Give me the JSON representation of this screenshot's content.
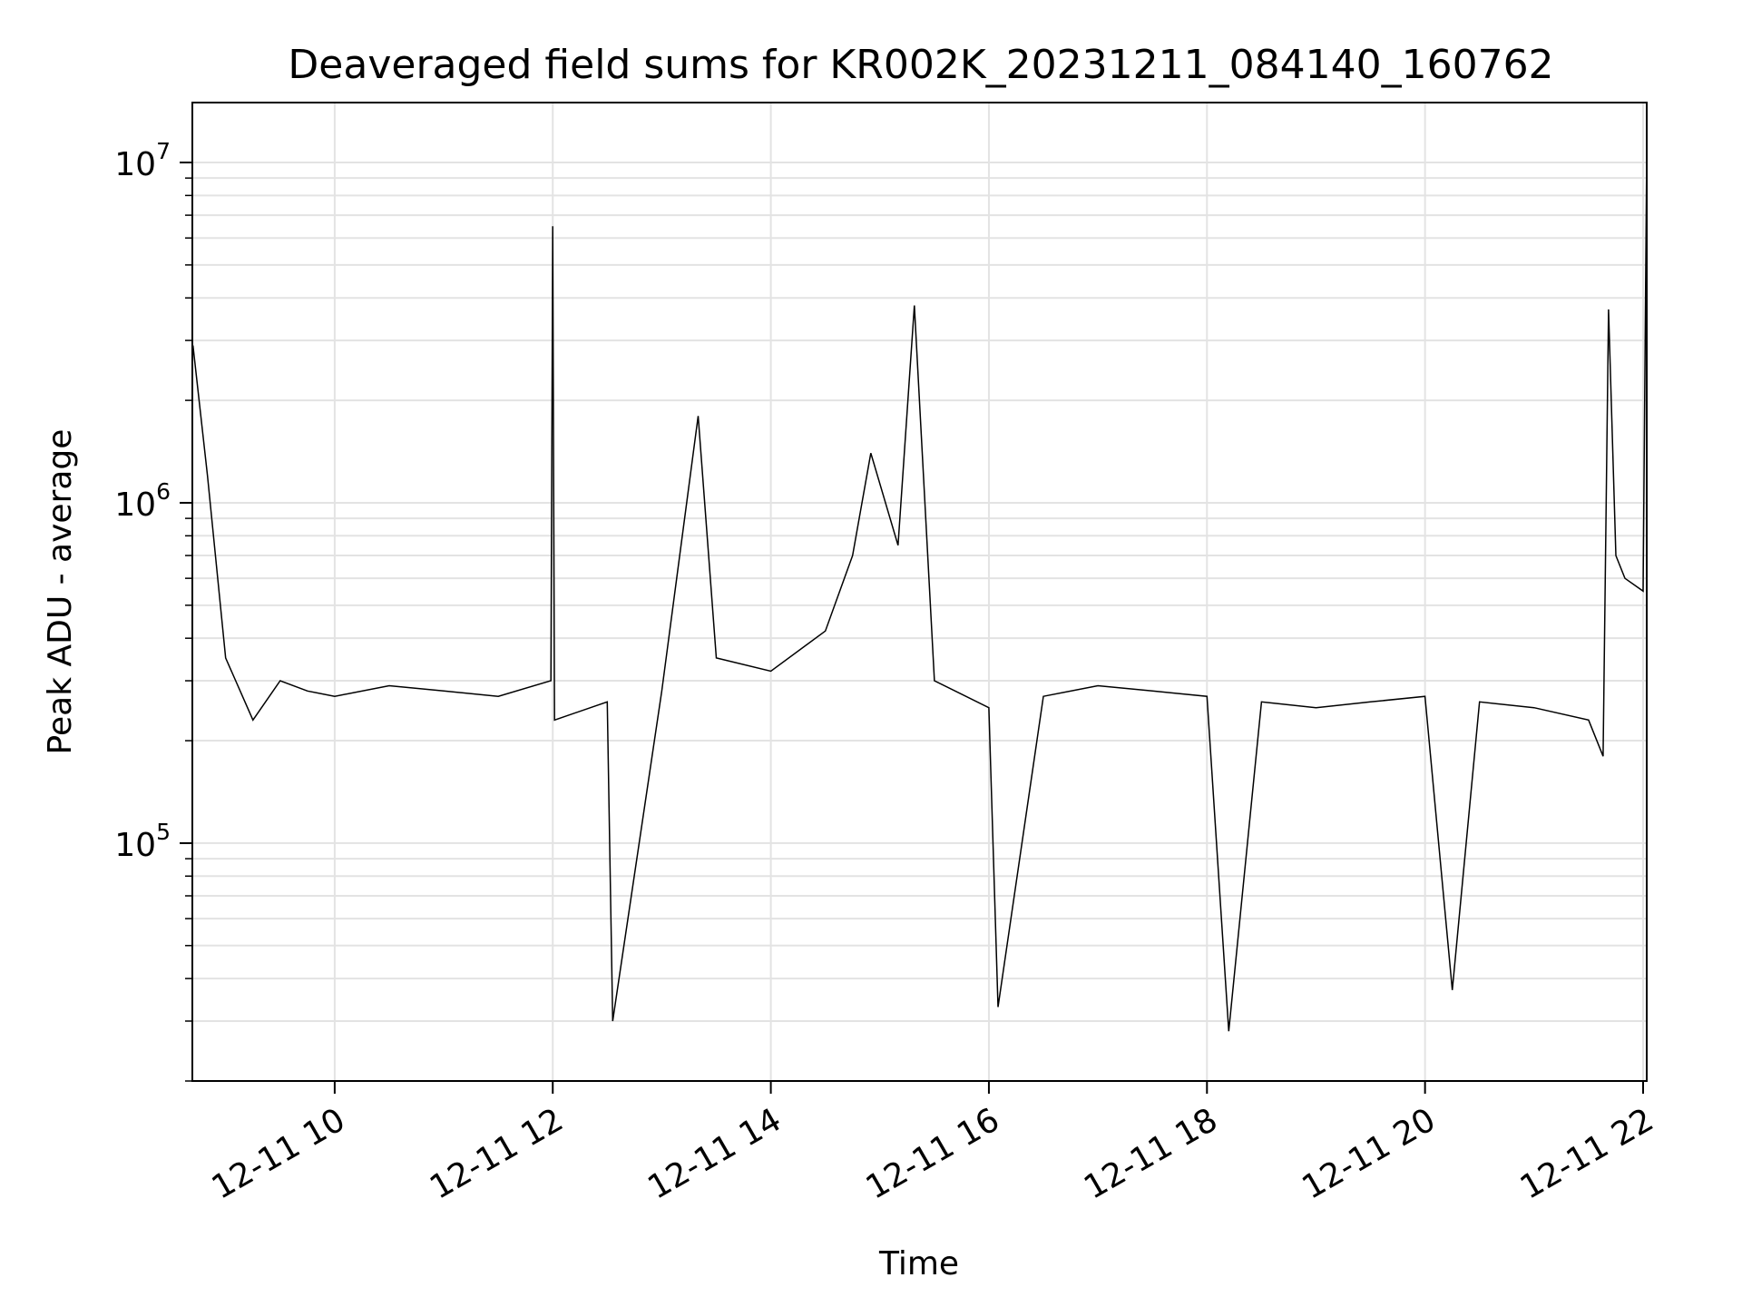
{
  "chart_data": {
    "type": "line",
    "title": "Deaveraged field sums for KR002K_20231211_084140_160762",
    "xlabel": "Time",
    "ylabel": "Peak ADU - average",
    "x_range": [
      "2023-12-11 08:41:40",
      "2023-12-11 22:02:00"
    ],
    "yscale": "log",
    "ylim": [
      20000,
      15000000
    ],
    "grid": true,
    "x_ticks": [
      {
        "value": "2023-12-11 10:00",
        "label": "12-11 10"
      },
      {
        "value": "2023-12-11 12:00",
        "label": "12-11 12"
      },
      {
        "value": "2023-12-11 14:00",
        "label": "12-11 14"
      },
      {
        "value": "2023-12-11 16:00",
        "label": "12-11 16"
      },
      {
        "value": "2023-12-11 18:00",
        "label": "12-11 18"
      },
      {
        "value": "2023-12-11 20:00",
        "label": "12-11 20"
      },
      {
        "value": "2023-12-11 22:00",
        "label": "12-11 22"
      }
    ],
    "y_ticks": [
      {
        "value": 100000,
        "base": "10",
        "exp": "5"
      },
      {
        "value": 1000000,
        "base": "10",
        "exp": "6"
      },
      {
        "value": 10000000,
        "base": "10",
        "exp": "7"
      }
    ],
    "line_color": "#000000",
    "series": [
      {
        "x": [
          "2023-12-11 08:42",
          "2023-12-11 08:50",
          "2023-12-11 09:00",
          "2023-12-11 09:15",
          "2023-12-11 09:30",
          "2023-12-11 09:45",
          "2023-12-11 10:00",
          "2023-12-11 10:30",
          "2023-12-11 11:00",
          "2023-12-11 11:30",
          "2023-12-11 11:59",
          "2023-12-11 12:00",
          "2023-12-11 12:01",
          "2023-12-11 12:30",
          "2023-12-11 12:33",
          "2023-12-11 13:00",
          "2023-12-11 13:20",
          "2023-12-11 13:30",
          "2023-12-11 14:00",
          "2023-12-11 14:30",
          "2023-12-11 14:45",
          "2023-12-11 14:55",
          "2023-12-11 15:10",
          "2023-12-11 15:19",
          "2023-12-11 15:30",
          "2023-12-11 16:00",
          "2023-12-11 16:05",
          "2023-12-11 16:30",
          "2023-12-11 17:00",
          "2023-12-11 17:30",
          "2023-12-11 18:00",
          "2023-12-11 18:12",
          "2023-12-11 18:30",
          "2023-12-11 19:00",
          "2023-12-11 19:30",
          "2023-12-11 20:00",
          "2023-12-11 20:15",
          "2023-12-11 20:30",
          "2023-12-11 21:00",
          "2023-12-11 21:30",
          "2023-12-11 21:38",
          "2023-12-11 21:41",
          "2023-12-11 21:45",
          "2023-12-11 21:50",
          "2023-12-11 22:00",
          "2023-12-11 22:02"
        ],
        "values": [
          2900000,
          1200000,
          350000,
          230000,
          300000,
          280000,
          270000,
          290000,
          280000,
          270000,
          300000,
          6500000,
          230000,
          260000,
          30000,
          280000,
          1800000,
          350000,
          320000,
          420000,
          700000,
          1400000,
          750000,
          3800000,
          300000,
          250000,
          33000,
          270000,
          290000,
          280000,
          270000,
          28000,
          260000,
          250000,
          260000,
          270000,
          37000,
          260000,
          250000,
          230000,
          180000,
          3700000,
          700000,
          600000,
          550000,
          10800000
        ]
      }
    ]
  }
}
